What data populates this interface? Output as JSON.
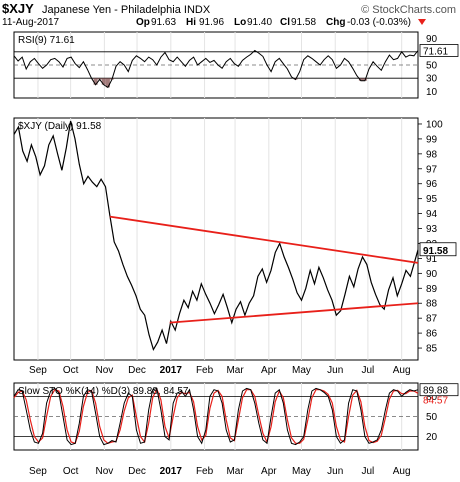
{
  "header": {
    "symbol": "$XJY",
    "name": "Japanese Yen - Philadelphia INDX",
    "brand": "© StockCharts.com",
    "date": "11-Aug-2017",
    "op_label": "Op",
    "op": "91.63",
    "hi_label": "Hi",
    "hi": "91.96",
    "lo_label": "Lo",
    "lo": "91.40",
    "cl_label": "Cl",
    "cl": "91.58",
    "chg_label": "Chg",
    "chg": "-0.03 (-0.03%)"
  },
  "colors": {
    "price": "#000000",
    "trendline": "#e8201a",
    "stoch_d": "#e8201a",
    "rsi_fill": "#8c5a5a",
    "axis": "#888888"
  },
  "chart_data": [
    {
      "type": "line",
      "legend": "RSI(9) 71.61",
      "last_value_label": "71.61",
      "ylim": [
        0,
        100
      ],
      "yticks": [
        90,
        70,
        50,
        30,
        10
      ],
      "ref_lines": [
        70,
        50,
        30
      ],
      "x": [
        0,
        3,
        6,
        9,
        12,
        15,
        18,
        21,
        24,
        27,
        30,
        33,
        36,
        39,
        42,
        45,
        48,
        51,
        54,
        57,
        60,
        63,
        66,
        69,
        72,
        75,
        78,
        81,
        84,
        87,
        90,
        93,
        96,
        99,
        102,
        105,
        108,
        111,
        114,
        117,
        120,
        123,
        126,
        129,
        132,
        135,
        138,
        141,
        144,
        147,
        150,
        153,
        156,
        159,
        162,
        165,
        168,
        171,
        174,
        177,
        180,
        183,
        186,
        189,
        192,
        195,
        198,
        201,
        204,
        207,
        210,
        213,
        216,
        219,
        222,
        225,
        228,
        231,
        234,
        237,
        240,
        243,
        246,
        249,
        252,
        255,
        258,
        261,
        264,
        267,
        270,
        273,
        276,
        279,
        282,
        285,
        288,
        291,
        294,
        297
      ],
      "values": [
        64,
        56,
        62,
        44,
        55,
        60,
        52,
        45,
        50,
        58,
        60,
        55,
        47,
        60,
        62,
        52,
        46,
        55,
        43,
        30,
        20,
        28,
        20,
        16,
        28,
        48,
        55,
        50,
        40,
        57,
        64,
        60,
        55,
        62,
        58,
        50,
        62,
        69,
        58,
        55,
        62,
        55,
        48,
        57,
        62,
        50,
        55,
        60,
        54,
        57,
        50,
        45,
        55,
        60,
        52,
        48,
        57,
        62,
        66,
        72,
        68,
        63,
        50,
        40,
        55,
        60,
        52,
        44,
        32,
        28,
        40,
        58,
        64,
        60,
        55,
        50,
        58,
        64,
        58,
        45,
        50,
        60,
        55,
        45,
        34,
        26,
        26,
        44,
        55,
        48,
        42,
        55,
        65,
        58,
        60,
        70,
        62,
        65,
        64,
        72
      ]
    },
    {
      "type": "line",
      "legend": "$XJY (Daily) 91.58",
      "last_value_label": "91.58",
      "ylim": [
        84.2,
        100.4
      ],
      "yticks": [
        100,
        99,
        98,
        97,
        96,
        95,
        94,
        93,
        92,
        91,
        90,
        89,
        88,
        87,
        86,
        85
      ],
      "x_tick_labels": [
        "Sep",
        "Oct",
        "Nov",
        "Dec",
        "2017",
        "Feb",
        "Mar",
        "Apr",
        "May",
        "Jun",
        "Jul",
        "Aug"
      ],
      "x_tick_days": [
        22,
        52,
        83,
        113,
        144,
        175,
        203,
        234,
        264,
        295,
        325,
        356
      ],
      "x": [
        0,
        4,
        8,
        12,
        16,
        20,
        24,
        28,
        32,
        36,
        40,
        44,
        48,
        52,
        56,
        60,
        64,
        68,
        72,
        76,
        80,
        84,
        88,
        92,
        96,
        100,
        104,
        108,
        112,
        116,
        120,
        124,
        128,
        132,
        136,
        140,
        144,
        148,
        152,
        156,
        160,
        164,
        168,
        172,
        176,
        180,
        184,
        188,
        192,
        196,
        200,
        204,
        208,
        212,
        216,
        220,
        224,
        228,
        232,
        236,
        240,
        244,
        248,
        252,
        256,
        260,
        264,
        268,
        272,
        276,
        280,
        284,
        288,
        292,
        296,
        300,
        304,
        308,
        312,
        316,
        320,
        324,
        328,
        332,
        336,
        340,
        344,
        348,
        352,
        356,
        360,
        364,
        368,
        371
      ],
      "values": [
        99.3,
        99.8,
        98.2,
        97.5,
        98.6,
        97.8,
        96.6,
        97.2,
        98.6,
        99.2,
        98.0,
        96.9,
        98.4,
        100.2,
        99.0,
        97.3,
        96.0,
        96.5,
        96.1,
        95.8,
        96.3,
        95.8,
        93.9,
        92.1,
        91.5,
        90.6,
        89.8,
        89.2,
        88.5,
        87.6,
        87.2,
        85.9,
        84.9,
        85.4,
        86.2,
        85.3,
        86.8,
        86.2,
        87.3,
        88.2,
        87.7,
        88.8,
        88.2,
        89.3,
        88.6,
        88.0,
        87.3,
        87.9,
        88.6,
        87.7,
        86.7,
        87.6,
        88.1,
        87.2,
        88.0,
        88.5,
        89.8,
        90.3,
        89.4,
        90.2,
        91.4,
        92.0,
        91.1,
        90.4,
        89.6,
        88.7,
        88.2,
        89.0,
        90.2,
        89.3,
        90.4,
        89.7,
        88.9,
        88.2,
        87.2,
        87.5,
        88.6,
        89.8,
        89.1,
        90.3,
        91.1,
        90.6,
        89.4,
        88.6,
        87.9,
        87.6,
        88.9,
        89.7,
        88.5,
        89.3,
        90.2,
        89.8,
        90.8,
        91.58
      ],
      "trendlines": [
        {
          "from": [
            88,
            93.8
          ],
          "to": [
            371,
            90.7
          ]
        },
        {
          "from": [
            143,
            86.7
          ],
          "to": [
            371,
            88.0
          ]
        }
      ]
    },
    {
      "type": "line",
      "legend": "Slow STO %K(14) %D(3) 89.88, 84.57",
      "last_value_label": "89.88",
      "second_value_label": "84.57",
      "ylim": [
        0,
        100
      ],
      "yticks": [
        80,
        50,
        20
      ],
      "ref_lines": [
        80,
        50,
        20
      ],
      "x": [
        0,
        3,
        6,
        9,
        12,
        15,
        18,
        21,
        24,
        27,
        30,
        33,
        36,
        39,
        42,
        45,
        48,
        51,
        54,
        57,
        60,
        63,
        66,
        69,
        72,
        75,
        78,
        81,
        84,
        87,
        90,
        93,
        96,
        99,
        102,
        105,
        108,
        111,
        114,
        117,
        120,
        123,
        126,
        129,
        132,
        135,
        138,
        141,
        144,
        147,
        150,
        153,
        156,
        159,
        162,
        165,
        168,
        171,
        174,
        177,
        180,
        183,
        186,
        189,
        192,
        195,
        198,
        201,
        204,
        207,
        210,
        213,
        216,
        219,
        222,
        225,
        228,
        231,
        234,
        237,
        240,
        243,
        246,
        249,
        252,
        255,
        258,
        261,
        264,
        267,
        270,
        273,
        276,
        279,
        282,
        285,
        288,
        291,
        294,
        297
      ],
      "series": [
        {
          "values": [
            80,
            90,
            88,
            60,
            30,
            12,
            10,
            25,
            70,
            88,
            92,
            85,
            50,
            15,
            8,
            10,
            40,
            80,
            90,
            88,
            55,
            20,
            8,
            10,
            14,
            12,
            40,
            70,
            85,
            80,
            30,
            10,
            12,
            60,
            90,
            92,
            60,
            20,
            15,
            70,
            85,
            88,
            80,
            90,
            60,
            20,
            10,
            30,
            80,
            90,
            88,
            70,
            30,
            12,
            15,
            60,
            88,
            92,
            90,
            70,
            40,
            15,
            10,
            50,
            85,
            90,
            70,
            30,
            10,
            8,
            12,
            20,
            60,
            88,
            92,
            90,
            86,
            80,
            60,
            20,
            10,
            15,
            70,
            90,
            88,
            60,
            20,
            10,
            12,
            15,
            30,
            60,
            85,
            90,
            88,
            80,
            86,
            90,
            88,
            90
          ]
        },
        {
          "values": [
            78,
            86,
            88,
            75,
            45,
            20,
            12,
            18,
            50,
            80,
            90,
            88,
            65,
            30,
            12,
            10,
            28,
            65,
            86,
            89,
            70,
            35,
            15,
            10,
            12,
            13,
            30,
            58,
            78,
            82,
            50,
            20,
            12,
            40,
            78,
            91,
            75,
            35,
            18,
            50,
            78,
            86,
            84,
            86,
            72,
            35,
            15,
            22,
            62,
            85,
            89,
            80,
            45,
            18,
            14,
            45,
            78,
            90,
            90,
            80,
            52,
            25,
            12,
            35,
            72,
            88,
            78,
            45,
            18,
            10,
            10,
            16,
            45,
            78,
            90,
            90,
            88,
            83,
            70,
            35,
            15,
            12,
            50,
            82,
            89,
            72,
            35,
            14,
            11,
            13,
            22,
            48,
            76,
            88,
            89,
            84,
            84,
            88,
            88,
            84.57
          ]
        }
      ]
    }
  ]
}
